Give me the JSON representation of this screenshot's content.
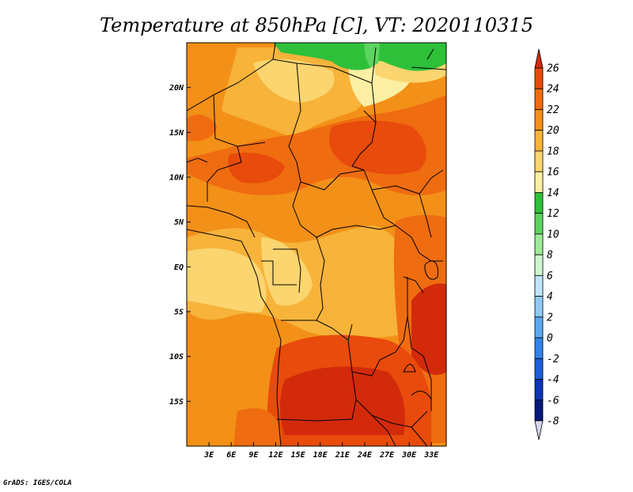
{
  "title": "Temperature at 850hPa [C], VT: 2020110315",
  "credit": "GrADS: IGES/COLA",
  "map": {
    "lon_range": [
      0,
      35
    ],
    "lat_range": [
      -20,
      25
    ],
    "lon_ticks": [
      "3E",
      "6E",
      "9E",
      "12E",
      "15E",
      "18E",
      "21E",
      "24E",
      "27E",
      "30E",
      "33E"
    ],
    "lat_ticks": [
      "20N",
      "15N",
      "10N",
      "5N",
      "EQ",
      "5S",
      "10S",
      "15S"
    ]
  },
  "colorbar": {
    "labels": [
      "26",
      "24",
      "22",
      "20",
      "18",
      "16",
      "14",
      "12",
      "10",
      "8",
      "6",
      "4",
      "2",
      "0",
      "-2",
      "-4",
      "-6",
      "-8"
    ],
    "colors": [
      "#d32a0b",
      "#e84b0b",
      "#ef6c10",
      "#f39017",
      "#f7b33a",
      "#fbd56f",
      "#fcefa4",
      "#2fc03a",
      "#5ed460",
      "#9eea99",
      "#cdf5cf",
      "#bfe4fb",
      "#8fcaf6",
      "#5ba9ef",
      "#3384e6",
      "#1d5dd6",
      "#0f34b5",
      "#071a7a",
      "#d8d8f4"
    ]
  }
}
